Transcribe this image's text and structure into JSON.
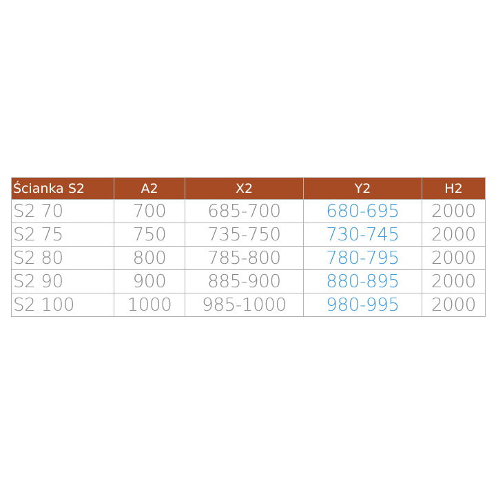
{
  "table": {
    "headers": [
      "Ścianka S2",
      "A2",
      "X2",
      "Y2",
      "H2"
    ],
    "rows": [
      [
        "S2 70",
        "700",
        "685-700",
        "680-695",
        "2000"
      ],
      [
        "S2 75",
        "750",
        "735-750",
        "730-745",
        "2000"
      ],
      [
        "S2 80",
        "800",
        "785-800",
        "780-795",
        "2000"
      ],
      [
        "S2 90",
        "900",
        "885-900",
        "880-895",
        "2000"
      ],
      [
        "S2 100",
        "1000",
        "985-1000",
        "980-995",
        "2000"
      ]
    ]
  },
  "colors": {
    "header_bg": "#a64b24",
    "header_text": "#ffffff",
    "cell_text": "#8a8a8a",
    "highlight_text": "#3a9ad9"
  }
}
